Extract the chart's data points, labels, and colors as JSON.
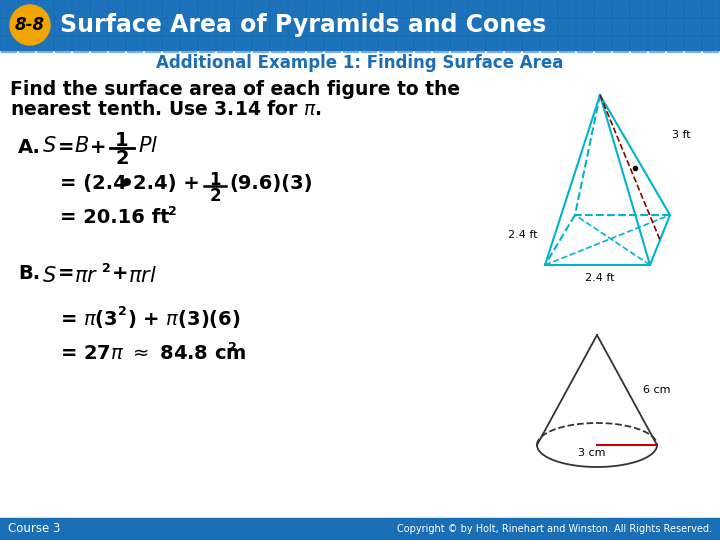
{
  "header_bg": "#1a6eb5",
  "header_text": "Surface Area of Pyramids and Cones",
  "badge_color": "#f0a500",
  "badge_text": "8-8",
  "body_bg": "#ffffff",
  "footer_bg": "#1a6eb5",
  "footer_left": "Course 3",
  "footer_right": "Copyright © by Holt, Rinehart and Winston. All Rights Reserved.",
  "subtitle_color": "#1a6eb5",
  "pyramid_color": "#00b4cc",
  "slant_color": "#8b0000",
  "cone_color": "#333333",
  "cone_radius_color": "#cc0000"
}
